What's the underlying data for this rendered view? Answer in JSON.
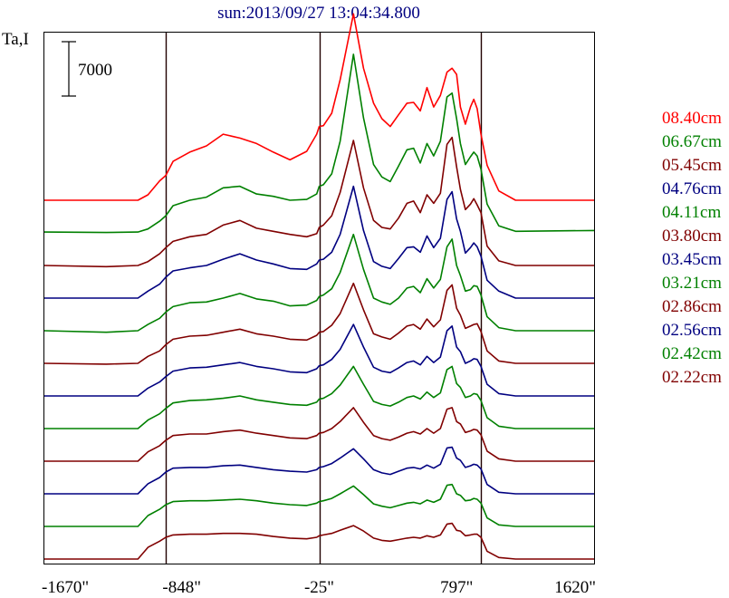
{
  "chart_data": {
    "type": "line",
    "title": "sun:2013/09/27 13:04:34.800",
    "ylabel": "Ta,I",
    "scale_bar_label": "7000",
    "x_ticks": [
      {
        "value": -1670,
        "label": "-1670\""
      },
      {
        "value": -848,
        "label": "-848\""
      },
      {
        "value": -25,
        "label": "-25\""
      },
      {
        "value": 797,
        "label": "797\""
      },
      {
        "value": 1620,
        "label": "1620\""
      }
    ],
    "xlim": [
      -1670,
      1620
    ],
    "vertical_lines_at": [
      -943,
      -25,
      943
    ],
    "scale_bar_value": 7000,
    "offset_per_trace": 4200,
    "grid": false,
    "legend_position": "right",
    "profile_x": [
      -1670,
      -1300,
      -1110,
      -1050,
      -980,
      -943,
      -900,
      -800,
      -700,
      -600,
      -500,
      -400,
      -300,
      -200,
      -100,
      -40,
      -25,
      0,
      50,
      100,
      180,
      240,
      300,
      350,
      400,
      450,
      500,
      540,
      580,
      620,
      660,
      700,
      740,
      770,
      797,
      820,
      850,
      880,
      900,
      920,
      943,
      980,
      1050,
      1150,
      1620
    ],
    "series": [
      {
        "name": "08.40cm",
        "color": "#ff0000",
        "values": [
          0,
          0,
          0,
          700,
          2500,
          3200,
          5000,
          6200,
          7000,
          8500,
          8000,
          7300,
          6200,
          5200,
          6300,
          8500,
          9500,
          9600,
          11200,
          15500,
          24000,
          17000,
          12500,
          10500,
          9500,
          11000,
          12500,
          12600,
          11500,
          14500,
          12000,
          13500,
          16500,
          17000,
          16200,
          12000,
          9800,
          12000,
          13000,
          11800,
          8500,
          4500,
          1200,
          0,
          0
        ]
      },
      {
        "name": "06.67cm",
        "color": "#008000",
        "values": [
          100,
          50,
          100,
          500,
          1500,
          2200,
          3500,
          4200,
          4600,
          5800,
          6000,
          5000,
          4700,
          4200,
          4300,
          5000,
          6000,
          6200,
          7600,
          11800,
          23000,
          14800,
          8800,
          7200,
          6600,
          8600,
          10700,
          10900,
          9000,
          11500,
          9900,
          11800,
          17500,
          18000,
          14700,
          11500,
          8800,
          9800,
          10400,
          9900,
          8200,
          3700,
          900,
          200,
          300
        ]
      },
      {
        "name": "05.45cm",
        "color": "#800000",
        "values": [
          0,
          -150,
          0,
          500,
          1500,
          2300,
          3100,
          3700,
          4000,
          5200,
          5800,
          4800,
          4400,
          4000,
          3700,
          4100,
          4900,
          5200,
          6400,
          9400,
          16100,
          10000,
          5800,
          4900,
          4700,
          6100,
          8000,
          8300,
          6800,
          9100,
          8000,
          9300,
          15600,
          16500,
          12700,
          9800,
          7200,
          7900,
          8600,
          7800,
          6800,
          2500,
          600,
          0,
          0
        ]
      },
      {
        "name": "04.76cm",
        "color": "#000080",
        "values": [
          0,
          0,
          0,
          900,
          1800,
          2700,
          3500,
          3900,
          4200,
          5000,
          5700,
          4900,
          4400,
          3800,
          3700,
          4400,
          4900,
          5000,
          5900,
          8200,
          14400,
          8700,
          4700,
          4100,
          3800,
          5100,
          6500,
          6600,
          5900,
          8000,
          6500,
          7700,
          12700,
          13700,
          10200,
          8600,
          5800,
          6500,
          7100,
          6600,
          5400,
          2300,
          900,
          0,
          0
        ]
      },
      {
        "name": "04.11cm",
        "color": "#008000",
        "values": [
          0,
          -200,
          0,
          800,
          1600,
          2400,
          3100,
          3600,
          3700,
          4200,
          4800,
          4100,
          3800,
          3200,
          3300,
          3900,
          4400,
          4600,
          5400,
          7500,
          12400,
          7900,
          4200,
          3700,
          3400,
          4200,
          5500,
          5700,
          4900,
          6700,
          5500,
          6600,
          10800,
          11800,
          8400,
          7100,
          5100,
          5300,
          5800,
          5700,
          4600,
          1800,
          400,
          0,
          0
        ]
      },
      {
        "name": "03.80cm",
        "color": "#800000",
        "values": [
          0,
          -100,
          0,
          900,
          1600,
          2400,
          3100,
          3500,
          3600,
          4000,
          4400,
          3800,
          3500,
          3100,
          3000,
          3600,
          4000,
          4100,
          4900,
          6400,
          10300,
          6900,
          3800,
          3400,
          3100,
          3900,
          4800,
          5000,
          4400,
          5700,
          4700,
          5600,
          9400,
          10100,
          7100,
          6200,
          4500,
          4800,
          5000,
          5100,
          4100,
          1600,
          300,
          0,
          0
        ]
      },
      {
        "name": "03.45cm",
        "color": "#000080",
        "values": [
          0,
          0,
          0,
          1000,
          1800,
          2500,
          3200,
          3600,
          3700,
          4000,
          4300,
          3800,
          3500,
          3100,
          3000,
          3500,
          3900,
          4000,
          4700,
          6000,
          9200,
          6300,
          3700,
          3200,
          3000,
          3600,
          4300,
          4500,
          4000,
          5100,
          4300,
          5000,
          8400,
          9000,
          6300,
          5700,
          4200,
          4500,
          4800,
          4700,
          3800,
          1500,
          300,
          0,
          0
        ]
      },
      {
        "name": "03.21cm",
        "color": "#008000",
        "values": [
          0,
          0,
          0,
          1100,
          1900,
          2600,
          3300,
          3600,
          3700,
          3900,
          4200,
          3700,
          3400,
          3100,
          3000,
          3400,
          3800,
          3900,
          4500,
          5600,
          8000,
          5700,
          3500,
          3100,
          2900,
          3400,
          4000,
          4200,
          3800,
          4700,
          4000,
          4600,
          7600,
          8000,
          5800,
          5300,
          4000,
          4200,
          4500,
          4400,
          3600,
          1400,
          300,
          0,
          0
        ]
      },
      {
        "name": "02.86cm",
        "color": "#800000",
        "values": [
          0,
          0,
          0,
          1200,
          2000,
          2700,
          3300,
          3500,
          3500,
          3800,
          4000,
          3600,
          3300,
          3000,
          2900,
          3300,
          3600,
          3700,
          4200,
          5100,
          6900,
          5000,
          3300,
          2900,
          2700,
          3100,
          3600,
          3800,
          3500,
          4200,
          3600,
          4200,
          6700,
          6900,
          5100,
          4800,
          3700,
          3900,
          4100,
          4000,
          3400,
          1300,
          300,
          0,
          0
        ]
      },
      {
        "name": "02.56cm",
        "color": "#000080",
        "values": [
          0,
          0,
          0,
          1300,
          2100,
          2800,
          3300,
          3400,
          3400,
          3600,
          3700,
          3400,
          3100,
          2900,
          2800,
          3100,
          3400,
          3500,
          3900,
          4600,
          5800,
          4500,
          3100,
          2700,
          2500,
          2900,
          3300,
          3400,
          3200,
          3700,
          3300,
          3800,
          5900,
          6000,
          4600,
          4300,
          3400,
          3600,
          3800,
          3700,
          3200,
          1200,
          200,
          0,
          0
        ]
      },
      {
        "name": "02.42cm",
        "color": "#008000",
        "values": [
          0,
          0,
          0,
          1400,
          2200,
          2800,
          3200,
          3300,
          3300,
          3400,
          3500,
          3300,
          3000,
          2800,
          2700,
          3000,
          3200,
          3300,
          3600,
          4200,
          5200,
          4100,
          2900,
          2600,
          2400,
          2700,
          3000,
          3100,
          2900,
          3400,
          3100,
          3500,
          5300,
          5400,
          4200,
          4000,
          3300,
          3400,
          3600,
          3500,
          3000,
          1100,
          200,
          0,
          0
        ]
      },
      {
        "name": "02.22cm",
        "color": "#800000",
        "values": [
          0,
          0,
          0,
          1500,
          2300,
          2800,
          3100,
          3200,
          3200,
          3300,
          3300,
          3200,
          2900,
          2700,
          2600,
          2800,
          3000,
          3100,
          3300,
          3700,
          4300,
          3600,
          2700,
          2400,
          2300,
          2500,
          2700,
          2800,
          2700,
          3000,
          2800,
          3100,
          4500,
          4600,
          3700,
          3600,
          3000,
          3100,
          3200,
          3200,
          2800,
          1000,
          200,
          0,
          0
        ]
      }
    ]
  }
}
